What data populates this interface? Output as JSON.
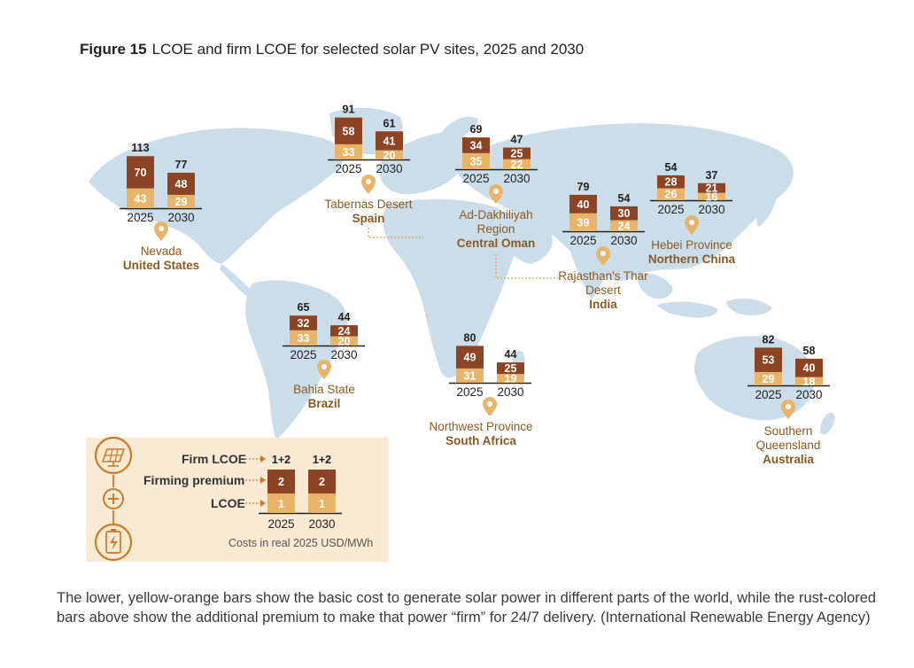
{
  "figure": {
    "label": "Figure 15",
    "title": "LCOE and firm LCOE for selected solar PV sites, 2025 and 2030"
  },
  "chart_data": {
    "type": "bar",
    "stacked": true,
    "years": [
      "2025",
      "2030"
    ],
    "series": [
      {
        "name": "LCOE",
        "color": "#e8b46a"
      },
      {
        "name": "Firming premium",
        "color": "#8c4424"
      }
    ],
    "sites": [
      {
        "place": "Nevada",
        "country": "United States",
        "lcoe": [
          43,
          29
        ],
        "premium": [
          70,
          48
        ],
        "firm": [
          113,
          77
        ]
      },
      {
        "place": "Tabernas Desert",
        "country": "Spain",
        "lcoe": [
          33,
          20
        ],
        "premium": [
          58,
          41
        ],
        "firm": [
          91,
          61
        ]
      },
      {
        "place": "Ad-Dakhiliyah Region",
        "country": "Central Oman",
        "lcoe": [
          35,
          22
        ],
        "premium": [
          34,
          25
        ],
        "firm": [
          69,
          47
        ]
      },
      {
        "place": "Rajasthan's Thar Desert",
        "country": "India",
        "lcoe": [
          39,
          24
        ],
        "premium": [
          40,
          30
        ],
        "firm": [
          79,
          54
        ]
      },
      {
        "place": "Hebei Province",
        "country": "Northern China",
        "lcoe": [
          26,
          16
        ],
        "premium": [
          28,
          21
        ],
        "firm": [
          54,
          37
        ]
      },
      {
        "place": "Bahia State",
        "country": "Brazil",
        "lcoe": [
          33,
          20
        ],
        "premium": [
          32,
          24
        ],
        "firm": [
          65,
          44
        ]
      },
      {
        "place": "Northwest Province",
        "country": "South Africa",
        "lcoe": [
          31,
          19
        ],
        "premium": [
          49,
          25
        ],
        "firm": [
          80,
          44
        ]
      },
      {
        "place": "Southern Queensland",
        "country": "Australia",
        "lcoe": [
          29,
          18
        ],
        "premium": [
          53,
          40
        ],
        "firm": [
          82,
          58
        ]
      }
    ],
    "legend": {
      "firm_label": "Firm LCOE",
      "premium_label": "Firming premium",
      "lcoe_label": "LCOE",
      "top_text": "1+2",
      "premium_text": "2",
      "lcoe_text": "1",
      "units_note": "Costs in real 2025 USD/MWh"
    }
  },
  "caption": "The lower, yellow-orange bars show the basic cost to generate solar power in different parts of the world, while the rust-colored bars above show the additional premium to make that power “firm” for 24/7 delivery. (International Renewable Energy Agency)",
  "colors": {
    "lcoe": "#e8b46a",
    "premium": "#8c4424",
    "map": "#cbdde8",
    "legend_bg": "#f8ead3",
    "location_label": "#8a5a22",
    "pin": "#e8b46a",
    "icon_ring": "#c87a2e"
  }
}
